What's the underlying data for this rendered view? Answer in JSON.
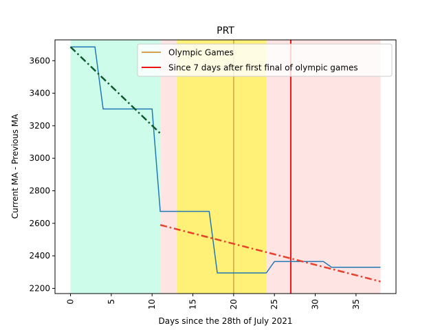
{
  "chart_data": {
    "type": "line",
    "title": "PRT",
    "xlabel": "Days since the 28th of July 2021",
    "ylabel": "Current MA - Previous MA",
    "xlim": [
      -1.9,
      39.9
    ],
    "ylim": [
      2168,
      3728
    ],
    "x_ticks": [
      0,
      5,
      10,
      15,
      20,
      25,
      30,
      35
    ],
    "y_ticks": [
      2200,
      2400,
      2600,
      2800,
      3000,
      3200,
      3400,
      3600
    ],
    "grid": false,
    "legend_position": "top-right",
    "bands": [
      {
        "x0": 0,
        "x1": 11,
        "color": "#cdfcea"
      },
      {
        "x0": 11,
        "x1": 13,
        "color": "#ffe4e4"
      },
      {
        "x0": 13,
        "x1": 24,
        "color": "#fff178"
      },
      {
        "x0": 24,
        "x1": 38,
        "color": "#ffe4e4"
      }
    ],
    "series": [
      {
        "color": "#1f77b4",
        "style": "solid",
        "points": [
          [
            0,
            3685
          ],
          [
            3,
            3685
          ],
          [
            4,
            3303
          ],
          [
            10,
            3303
          ],
          [
            11,
            2673
          ],
          [
            17,
            2673
          ],
          [
            18,
            2295
          ],
          [
            24,
            2295
          ],
          [
            25,
            2365
          ],
          [
            31,
            2365
          ],
          [
            32,
            2330
          ],
          [
            38,
            2330
          ]
        ]
      },
      {
        "color": "#0b5a2a",
        "style": "dashdot",
        "points": [
          [
            0,
            3685
          ],
          [
            11,
            3153
          ]
        ]
      },
      {
        "color": "#e8402a",
        "style": "dashdot",
        "points": [
          [
            11,
            2590
          ],
          [
            38,
            2242
          ]
        ]
      }
    ],
    "vlines": [
      {
        "x": 20,
        "color": "#d4a24c",
        "name": "Olympic Games"
      },
      {
        "x": 27,
        "color": "#ee1111",
        "name": "Since 7 days after first final of olympic games"
      }
    ]
  }
}
